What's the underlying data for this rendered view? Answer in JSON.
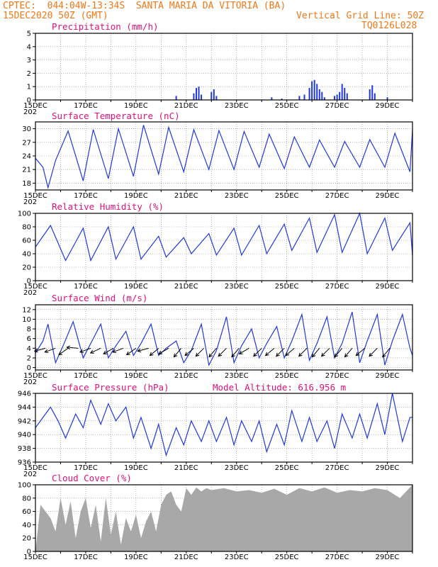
{
  "header": {
    "station_line": "CPTEC:  044:04W-13:34S  SANTA MARIA DA VITORIA (BA)",
    "run_time": "15DEC2020 50Z (GMT)",
    "grid_line": "Vertical Grid Line: 50Z",
    "model_id": "TQ0126L028"
  },
  "colors": {
    "header": "#f07818",
    "title": "#e0107a",
    "series": "#2038e0",
    "cloud": "#a8a8a8",
    "grid": "#888888"
  },
  "x_ticks": [
    "15DEC",
    "17DEC",
    "19DEC",
    "21DEC",
    "23DEC",
    "25DEC",
    "27DEC",
    "29DEC"
  ],
  "x_axis_year": "202",
  "chart_data": [
    {
      "type": "bar",
      "title": "Precipitation (mm/h)",
      "ylim": [
        0,
        5
      ],
      "yticks": [
        0,
        1,
        2,
        3,
        4,
        5
      ],
      "x_start_day": 15,
      "x_end_day": 30,
      "points": [
        [
          20.6,
          0.3
        ],
        [
          21.3,
          0.5
        ],
        [
          21.4,
          0.9
        ],
        [
          21.5,
          1.0
        ],
        [
          21.6,
          0.4
        ],
        [
          22.0,
          0.6
        ],
        [
          22.1,
          0.8
        ],
        [
          22.2,
          0.3
        ],
        [
          24.4,
          0.2
        ],
        [
          24.8,
          0.1
        ],
        [
          25.5,
          0.3
        ],
        [
          25.7,
          0.4
        ],
        [
          25.9,
          0.9
        ],
        [
          26.0,
          1.4
        ],
        [
          26.1,
          1.5
        ],
        [
          26.2,
          1.2
        ],
        [
          26.3,
          0.8
        ],
        [
          26.4,
          0.6
        ],
        [
          26.5,
          0.2
        ],
        [
          26.9,
          0.3
        ],
        [
          27.0,
          0.4
        ],
        [
          27.1,
          0.6
        ],
        [
          27.2,
          1.2
        ],
        [
          27.3,
          0.9
        ],
        [
          27.4,
          0.5
        ],
        [
          28.3,
          0.8
        ],
        [
          28.4,
          1.1
        ],
        [
          28.5,
          0.5
        ],
        [
          29.0,
          0.2
        ]
      ]
    },
    {
      "type": "line",
      "title": "Surface Temperature (nC)",
      "ylim": [
        16.5,
        31.5
      ],
      "yticks": [
        18,
        21,
        24,
        27,
        30
      ],
      "x_start_day": 15,
      "x_end_day": 30,
      "x": [
        15.0,
        15.3,
        15.5,
        15.8,
        16.3,
        16.9,
        17.3,
        17.9,
        18.3,
        18.9,
        19.3,
        19.9,
        20.3,
        20.9,
        21.3,
        21.9,
        22.3,
        22.9,
        23.3,
        23.9,
        24.3,
        24.9,
        25.3,
        25.9,
        26.3,
        26.9,
        27.3,
        27.9,
        28.3,
        28.9,
        29.3,
        29.9,
        30.0
      ],
      "y": [
        23.5,
        21.5,
        17.0,
        23.0,
        29.5,
        18.5,
        29.8,
        19.0,
        30.0,
        19.5,
        30.8,
        20.0,
        30.3,
        20.5,
        29.8,
        21.0,
        29.6,
        21.0,
        29.4,
        21.5,
        28.8,
        21.2,
        28.2,
        21.5,
        27.5,
        21.5,
        27.2,
        21.5,
        27.6,
        21.5,
        29.0,
        20.5,
        29.8
      ]
    },
    {
      "type": "line",
      "title": "Relative Humidity (%)",
      "ylim": [
        0,
        100
      ],
      "yticks": [
        0,
        20,
        40,
        60,
        80,
        100
      ],
      "x_start_day": 15,
      "x_end_day": 30,
      "x": [
        15.0,
        15.6,
        16.2,
        16.9,
        17.2,
        17.9,
        18.2,
        18.9,
        19.2,
        19.9,
        20.2,
        20.9,
        21.2,
        21.9,
        22.2,
        22.9,
        23.2,
        23.9,
        24.2,
        24.9,
        25.2,
        25.9,
        26.2,
        26.9,
        27.2,
        27.9,
        28.2,
        28.9,
        29.2,
        29.9,
        30.0
      ],
      "y": [
        50,
        82,
        30,
        78,
        30,
        80,
        32,
        80,
        32,
        66,
        35,
        64,
        40,
        70,
        38,
        78,
        38,
        82,
        40,
        84,
        45,
        93,
        42,
        98,
        42,
        100,
        40,
        93,
        45,
        86,
        38
      ]
    },
    {
      "type": "line",
      "title": "Surface Wind (m/s)",
      "ylim": [
        -0.5,
        13
      ],
      "yticks": [
        0,
        2,
        4,
        6,
        8,
        10,
        12
      ],
      "x_start_day": 15,
      "x_end_day": 30,
      "x": [
        15.0,
        15.3,
        15.5,
        15.8,
        16.1,
        16.5,
        16.9,
        17.2,
        17.6,
        17.9,
        18.2,
        18.6,
        18.9,
        19.2,
        19.6,
        19.9,
        20.2,
        20.6,
        20.9,
        21.2,
        21.6,
        21.9,
        22.2,
        22.6,
        22.9,
        23.2,
        23.6,
        23.9,
        24.2,
        24.6,
        24.9,
        25.2,
        25.6,
        25.9,
        26.2,
        26.6,
        26.9,
        27.2,
        27.6,
        27.9,
        28.2,
        28.6,
        28.9,
        29.2,
        29.6,
        29.9,
        30.0
      ],
      "y": [
        3.0,
        5.5,
        9.0,
        1.0,
        4.5,
        9.5,
        2.0,
        5.0,
        9.0,
        2.0,
        4.5,
        7.5,
        2.5,
        5.0,
        9.0,
        2.5,
        4.0,
        5.5,
        1.0,
        3.5,
        9.0,
        0.5,
        3.5,
        10.5,
        1.0,
        4.5,
        8.0,
        2.0,
        5.0,
        8.5,
        2.0,
        5.5,
        11.0,
        1.5,
        5.0,
        10.5,
        2.0,
        5.0,
        11.5,
        1.0,
        5.5,
        11.0,
        0.5,
        5.5,
        11.0,
        4.0,
        2.5
      ],
      "vectors": [
        [
          15.4,
          195
        ],
        [
          15.8,
          200
        ],
        [
          16.3,
          215
        ],
        [
          16.7,
          175
        ],
        [
          17.2,
          200
        ],
        [
          17.6,
          205
        ],
        [
          18.1,
          210
        ],
        [
          18.5,
          200
        ],
        [
          19.0,
          215
        ],
        [
          19.5,
          195
        ],
        [
          19.9,
          220
        ],
        [
          20.3,
          210
        ],
        [
          20.8,
          230
        ],
        [
          21.3,
          220
        ],
        [
          21.7,
          225
        ],
        [
          22.2,
          230
        ],
        [
          22.6,
          225
        ],
        [
          23.1,
          230
        ],
        [
          23.5,
          210
        ],
        [
          24.0,
          225
        ],
        [
          24.5,
          220
        ],
        [
          24.9,
          225
        ],
        [
          25.3,
          220
        ],
        [
          25.8,
          225
        ],
        [
          26.3,
          230
        ],
        [
          26.7,
          225
        ],
        [
          27.2,
          230
        ],
        [
          27.6,
          230
        ],
        [
          28.1,
          220
        ],
        [
          28.6,
          225
        ],
        [
          29.1,
          230
        ]
      ]
    },
    {
      "type": "line",
      "title": "Surface Pressure (hPa)",
      "subtitle": "Model Altitude: 616.956 m",
      "ylim": [
        936,
        946
      ],
      "yticks": [
        936,
        938,
        940,
        942,
        944,
        946
      ],
      "x_start_day": 15,
      "x_end_day": 30,
      "x": [
        15.0,
        15.6,
        15.9,
        16.2,
        16.6,
        16.9,
        17.2,
        17.6,
        17.9,
        18.2,
        18.6,
        18.9,
        19.2,
        19.6,
        19.9,
        20.2,
        20.6,
        20.9,
        21.2,
        21.6,
        21.9,
        22.2,
        22.6,
        22.9,
        23.2,
        23.6,
        23.9,
        24.2,
        24.6,
        24.9,
        25.2,
        25.6,
        25.9,
        26.2,
        26.6,
        26.9,
        27.2,
        27.6,
        27.9,
        28.2,
        28.6,
        28.9,
        29.2,
        29.6,
        29.9,
        30.0
      ],
      "y": [
        941.0,
        944.0,
        942.0,
        939.5,
        943.0,
        941.0,
        945.0,
        941.5,
        944.5,
        942.0,
        944.0,
        939.5,
        942.5,
        938.0,
        941.5,
        937.0,
        941.0,
        938.5,
        942.0,
        939.0,
        942.0,
        939.0,
        942.5,
        938.5,
        942.0,
        939.0,
        942.0,
        937.5,
        941.5,
        938.5,
        943.5,
        939.0,
        942.5,
        939.0,
        942.0,
        938.0,
        943.0,
        939.5,
        943.0,
        939.5,
        944.5,
        940.0,
        946.0,
        939.0,
        942.5,
        942.5
      ]
    },
    {
      "type": "area",
      "title": "Cloud Cover (%)",
      "ylim": [
        0,
        100
      ],
      "yticks": [
        0,
        20,
        40,
        60,
        80,
        100
      ],
      "x_start_day": 15,
      "x_end_day": 30,
      "x": [
        15.0,
        15.2,
        15.4,
        15.6,
        15.8,
        16.0,
        16.2,
        16.4,
        16.6,
        16.8,
        17.0,
        17.2,
        17.4,
        17.6,
        17.8,
        18.0,
        18.2,
        18.4,
        18.6,
        18.8,
        19.0,
        19.2,
        19.4,
        19.6,
        19.8,
        20.0,
        20.2,
        20.4,
        20.6,
        20.8,
        21.0,
        21.2,
        21.4,
        21.6,
        21.8,
        22.0,
        22.5,
        23.0,
        23.5,
        24.0,
        24.5,
        25.0,
        25.5,
        26.0,
        26.5,
        27.0,
        27.5,
        28.0,
        28.5,
        29.0,
        29.5,
        30.0
      ],
      "y": [
        0,
        70,
        60,
        50,
        30,
        80,
        40,
        75,
        20,
        60,
        80,
        35,
        70,
        15,
        80,
        25,
        60,
        10,
        50,
        30,
        55,
        20,
        45,
        60,
        30,
        70,
        85,
        90,
        70,
        60,
        95,
        85,
        96,
        90,
        95,
        92,
        95,
        90,
        92,
        88,
        94,
        85,
        95,
        90,
        96,
        88,
        92,
        90,
        95,
        92,
        80,
        100
      ]
    }
  ]
}
